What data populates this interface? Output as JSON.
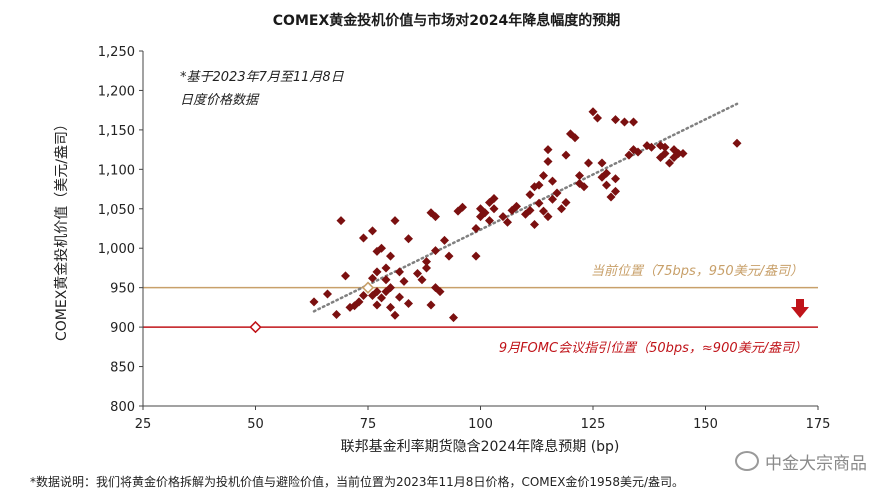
{
  "chart_data": {
    "type": "scatter",
    "title": "COMEX黄金投机价值与市场对2024年降息幅度的预期",
    "xlabel": "联邦基金利率期货隐含2024年降息预期 (bp)",
    "ylabel": "COMEX黄金投机价值（美元/盎司）",
    "xlim": [
      25,
      175
    ],
    "ylim": [
      800,
      1250
    ],
    "xticks": [
      "25",
      "50",
      "75",
      "100",
      "125",
      "150",
      "175"
    ],
    "yticks": [
      "800",
      "850",
      "900",
      "950",
      "1,000",
      "1,050",
      "1,100",
      "1,150",
      "1,200",
      "1,250"
    ],
    "grid": false,
    "note": [
      "*基于2023年7月至11月8日",
      "日度价格数据"
    ],
    "trendline": {
      "x": [
        63,
        157
      ],
      "y": [
        920,
        1183
      ],
      "style": "dotted"
    },
    "points": [
      [
        63,
        932
      ],
      [
        66,
        942
      ],
      [
        68,
        916
      ],
      [
        69,
        1035
      ],
      [
        70,
        965
      ],
      [
        71,
        925
      ],
      [
        72,
        927
      ],
      [
        73,
        932
      ],
      [
        74,
        940
      ],
      [
        74,
        1013
      ],
      [
        75,
        950
      ],
      [
        76,
        940
      ],
      [
        76,
        962
      ],
      [
        76,
        1022
      ],
      [
        77,
        928
      ],
      [
        77,
        945
      ],
      [
        77,
        970
      ],
      [
        77,
        996
      ],
      [
        78,
        937
      ],
      [
        78,
        1000
      ],
      [
        79,
        945
      ],
      [
        79,
        960
      ],
      [
        79,
        975
      ],
      [
        80,
        925
      ],
      [
        80,
        950
      ],
      [
        80,
        990
      ],
      [
        81,
        915
      ],
      [
        81,
        1035
      ],
      [
        82,
        938
      ],
      [
        82,
        970
      ],
      [
        83,
        958
      ],
      [
        84,
        1012
      ],
      [
        84,
        930
      ],
      [
        86,
        968
      ],
      [
        87,
        960
      ],
      [
        88,
        975
      ],
      [
        88,
        983
      ],
      [
        89,
        1045
      ],
      [
        89,
        928
      ],
      [
        90,
        1040
      ],
      [
        90,
        997
      ],
      [
        90,
        950
      ],
      [
        91,
        945
      ],
      [
        92,
        1010
      ],
      [
        93,
        990
      ],
      [
        94,
        912
      ],
      [
        95,
        1047
      ],
      [
        96,
        1052
      ],
      [
        99,
        1025
      ],
      [
        99,
        990
      ],
      [
        100,
        1050
      ],
      [
        100,
        1040
      ],
      [
        101,
        1045
      ],
      [
        102,
        1058
      ],
      [
        102,
        1035
      ],
      [
        103,
        1050
      ],
      [
        103,
        1063
      ],
      [
        105,
        1040
      ],
      [
        106,
        1033
      ],
      [
        107,
        1048
      ],
      [
        108,
        1053
      ],
      [
        110,
        1043
      ],
      [
        111,
        1048
      ],
      [
        111,
        1068
      ],
      [
        112,
        1030
      ],
      [
        112,
        1078
      ],
      [
        113,
        1080
      ],
      [
        113,
        1057
      ],
      [
        114,
        1092
      ],
      [
        114,
        1047
      ],
      [
        115,
        1040
      ],
      [
        115,
        1110
      ],
      [
        115,
        1125
      ],
      [
        116,
        1062
      ],
      [
        116,
        1085
      ],
      [
        117,
        1070
      ],
      [
        118,
        1050
      ],
      [
        119,
        1118
      ],
      [
        119,
        1058
      ],
      [
        120,
        1145
      ],
      [
        121,
        1140
      ],
      [
        122,
        1092
      ],
      [
        122,
        1082
      ],
      [
        123,
        1078
      ],
      [
        124,
        1108
      ],
      [
        125,
        1173
      ],
      [
        126,
        1165
      ],
      [
        127,
        1090
      ],
      [
        127,
        1108
      ],
      [
        128,
        1080
      ],
      [
        128,
        1095
      ],
      [
        129,
        1065
      ],
      [
        130,
        1163
      ],
      [
        130,
        1072
      ],
      [
        130,
        1088
      ],
      [
        132,
        1160
      ],
      [
        133,
        1118
      ],
      [
        134,
        1160
      ],
      [
        134,
        1125
      ],
      [
        135,
        1122
      ],
      [
        137,
        1130
      ],
      [
        138,
        1128
      ],
      [
        140,
        1130
      ],
      [
        140,
        1115
      ],
      [
        141,
        1128
      ],
      [
        141,
        1120
      ],
      [
        142,
        1108
      ],
      [
        143,
        1125
      ],
      [
        143,
        1115
      ],
      [
        144,
        1120
      ],
      [
        145,
        1120
      ],
      [
        157,
        1133
      ]
    ],
    "reference_lines": [
      {
        "y": 950,
        "label": "当前位置（75bps，950美元/盎司）",
        "color": "#c8a06a",
        "marker_x": 75
      },
      {
        "y": 900,
        "label": "9月FOMC会议指引位置（50bps，≈900美元/盎司）",
        "color": "#c0141a",
        "marker_x": 50
      }
    ],
    "colors": {
      "points": "#7b1010",
      "trend": "#808080",
      "arrow": "#c0141a"
    }
  },
  "footnote": "*数据说明：我们将黄金价格拆解为投机价值与避险价值，当前位置为2023年11月8日价格，COMEX金价1958美元/盎司。",
  "watermark": "中金大宗商品"
}
